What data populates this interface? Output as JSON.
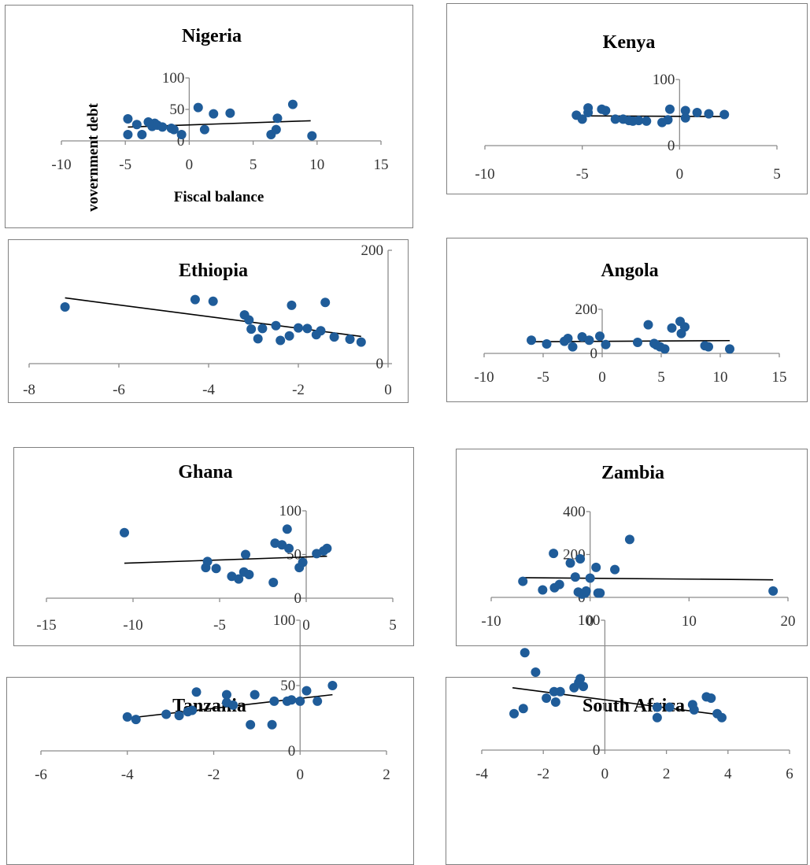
{
  "chart_data": [
    {
      "type": "scatter",
      "title": "Nigeria",
      "xlabel": "Fiscal balance",
      "ylabel": "vovernment debt",
      "xlim": [
        -10,
        15
      ],
      "ylim": [
        0,
        100
      ],
      "xticks": [
        -10,
        -5,
        0,
        5,
        10,
        15
      ],
      "yticks": [
        0,
        50,
        100
      ],
      "points": [
        [
          -4.8,
          35
        ],
        [
          -4.8,
          10
        ],
        [
          -4.1,
          26
        ],
        [
          -3.7,
          10
        ],
        [
          -3.2,
          30
        ],
        [
          -2.9,
          23
        ],
        [
          -2.7,
          28
        ],
        [
          -2.5,
          25
        ],
        [
          -2.1,
          22
        ],
        [
          -1.4,
          20
        ],
        [
          -1.2,
          18
        ],
        [
          -0.6,
          10
        ],
        [
          0.7,
          53
        ],
        [
          1.2,
          18
        ],
        [
          1.9,
          43
        ],
        [
          3.2,
          44
        ],
        [
          6.4,
          10
        ],
        [
          6.8,
          18
        ],
        [
          6.9,
          36
        ],
        [
          8.1,
          58
        ],
        [
          9.6,
          8
        ]
      ],
      "trendline": [
        [
          -4.8,
          22
        ],
        [
          9.5,
          32
        ]
      ]
    },
    {
      "type": "scatter",
      "title": "Kenya",
      "xlabel": "",
      "ylabel": "",
      "xlim": [
        -10,
        5
      ],
      "ylim": [
        0,
        100
      ],
      "xticks": [
        -10,
        -5,
        0,
        5
      ],
      "yticks": [
        0,
        100
      ],
      "points": [
        [
          -5.3,
          46
        ],
        [
          -5.0,
          40
        ],
        [
          -4.7,
          57
        ],
        [
          -4.7,
          50
        ],
        [
          -4.0,
          55
        ],
        [
          -3.8,
          53
        ],
        [
          -3.3,
          40
        ],
        [
          -2.9,
          40
        ],
        [
          -2.6,
          38
        ],
        [
          -2.4,
          37
        ],
        [
          -2.1,
          38
        ],
        [
          -1.7,
          37
        ],
        [
          -0.9,
          35
        ],
        [
          -0.6,
          39
        ],
        [
          -0.5,
          55
        ],
        [
          0.3,
          53
        ],
        [
          0.3,
          42
        ],
        [
          0.9,
          50
        ],
        [
          1.5,
          48
        ],
        [
          2.3,
          47
        ]
      ],
      "trendline": [
        [
          -5.4,
          45
        ],
        [
          2.3,
          44
        ]
      ]
    },
    {
      "type": "scatter",
      "title": "Ethiopia",
      "xlabel": "",
      "ylabel": "",
      "xlim": [
        -8,
        0
      ],
      "ylim": [
        0,
        200
      ],
      "xticks": [
        -8,
        -6,
        -4,
        -2,
        0
      ],
      "yticks": [
        0,
        200
      ],
      "points": [
        [
          -7.2,
          100
        ],
        [
          -4.3,
          113
        ],
        [
          -3.9,
          110
        ],
        [
          -3.2,
          86
        ],
        [
          -3.1,
          77
        ],
        [
          -3.05,
          61
        ],
        [
          -2.9,
          44
        ],
        [
          -2.8,
          62
        ],
        [
          -2.5,
          67
        ],
        [
          -2.4,
          41
        ],
        [
          -2.2,
          49
        ],
        [
          -2.15,
          103
        ],
        [
          -2.0,
          63
        ],
        [
          -1.8,
          62
        ],
        [
          -1.6,
          51
        ],
        [
          -1.5,
          58
        ],
        [
          -1.4,
          108
        ],
        [
          -1.2,
          47
        ],
        [
          -0.85,
          43
        ],
        [
          -0.6,
          38
        ]
      ],
      "trendline": [
        [
          -7.2,
          116
        ],
        [
          -0.6,
          48
        ]
      ]
    },
    {
      "type": "scatter",
      "title": "Angola",
      "xlabel": "",
      "ylabel": "",
      "xlim": [
        -10,
        15
      ],
      "ylim": [
        0,
        200
      ],
      "xticks": [
        -10,
        -5,
        0,
        5,
        10,
        15
      ],
      "yticks": [
        0,
        200
      ],
      "points": [
        [
          -6.0,
          60
        ],
        [
          -4.7,
          43
        ],
        [
          -3.2,
          55
        ],
        [
          -2.9,
          68
        ],
        [
          -2.5,
          30
        ],
        [
          -1.7,
          75
        ],
        [
          -1.1,
          60
        ],
        [
          -0.2,
          78
        ],
        [
          0.3,
          40
        ],
        [
          3.0,
          50
        ],
        [
          3.9,
          130
        ],
        [
          4.4,
          45
        ],
        [
          4.6,
          38
        ],
        [
          4.9,
          30
        ],
        [
          5.3,
          20
        ],
        [
          5.9,
          115
        ],
        [
          6.6,
          145
        ],
        [
          6.7,
          90
        ],
        [
          7.0,
          120
        ],
        [
          8.7,
          35
        ],
        [
          9.0,
          30
        ],
        [
          10.8,
          20
        ]
      ],
      "trendline": [
        [
          -6.0,
          53
        ],
        [
          10.8,
          58
        ]
      ]
    },
    {
      "type": "scatter",
      "title": "Ghana",
      "xlabel": "",
      "ylabel": "",
      "xlim": [
        -15,
        5
      ],
      "ylim": [
        0,
        100
      ],
      "xticks": [
        -15,
        -10,
        -5,
        0,
        5
      ],
      "yticks": [
        0,
        50,
        100
      ],
      "points": [
        [
          -10.5,
          75
        ],
        [
          -5.8,
          35
        ],
        [
          -5.7,
          42
        ],
        [
          -5.2,
          34
        ],
        [
          -4.3,
          25
        ],
        [
          -3.9,
          22
        ],
        [
          -3.6,
          30
        ],
        [
          -3.5,
          50
        ],
        [
          -3.3,
          27
        ],
        [
          -1.9,
          18
        ],
        [
          -1.8,
          63
        ],
        [
          -1.4,
          61
        ],
        [
          -1.1,
          79
        ],
        [
          -1.0,
          57
        ],
        [
          -0.4,
          35
        ],
        [
          -0.2,
          41
        ],
        [
          0.6,
          51
        ],
        [
          1.0,
          54
        ],
        [
          1.2,
          57
        ]
      ],
      "trendline": [
        [
          -10.5,
          40
        ],
        [
          1.2,
          48
        ]
      ]
    },
    {
      "type": "scatter",
      "title": "Zambia",
      "xlabel": "",
      "ylabel": "",
      "xlim": [
        -10,
        20
      ],
      "ylim": [
        0,
        400
      ],
      "xticks": [
        -10,
        0,
        10,
        20
      ],
      "yticks": [
        0,
        200,
        400
      ],
      "points": [
        [
          -6.8,
          75
        ],
        [
          -4.8,
          35
        ],
        [
          -3.7,
          205
        ],
        [
          -3.6,
          45
        ],
        [
          -3.1,
          60
        ],
        [
          -2.0,
          160
        ],
        [
          -1.5,
          95
        ],
        [
          -1.2,
          25
        ],
        [
          -1.0,
          180
        ],
        [
          -0.8,
          15
        ],
        [
          -0.5,
          20
        ],
        [
          -0.4,
          30
        ],
        [
          0.0,
          90
        ],
        [
          0.6,
          140
        ],
        [
          0.8,
          20
        ],
        [
          1.0,
          20
        ],
        [
          2.5,
          130
        ],
        [
          4.0,
          270
        ],
        [
          18.5,
          30
        ]
      ],
      "trendline": [
        [
          -6.8,
          92
        ],
        [
          18.5,
          82
        ]
      ]
    },
    {
      "type": "scatter",
      "title": "Tanzania",
      "xlabel": "",
      "ylabel": "",
      "xlim": [
        -6,
        2
      ],
      "ylim": [
        0,
        100
      ],
      "xticks": [
        -6,
        -4,
        -2,
        0,
        2
      ],
      "yticks": [
        0,
        50,
        100
      ],
      "points": [
        [
          -4.0,
          26
        ],
        [
          -3.8,
          24
        ],
        [
          -3.1,
          28
        ],
        [
          -2.8,
          27
        ],
        [
          -2.6,
          30
        ],
        [
          -2.5,
          31
        ],
        [
          -2.4,
          45
        ],
        [
          -1.7,
          43
        ],
        [
          -1.7,
          37
        ],
        [
          -1.55,
          35
        ],
        [
          -1.15,
          20
        ],
        [
          -1.05,
          43
        ],
        [
          -0.65,
          20
        ],
        [
          -0.6,
          38
        ],
        [
          -0.3,
          38
        ],
        [
          -0.2,
          39
        ],
        [
          0.0,
          38
        ],
        [
          0.15,
          46
        ],
        [
          0.4,
          38
        ],
        [
          0.75,
          50
        ]
      ],
      "trendline": [
        [
          -4.0,
          25
        ],
        [
          0.75,
          43
        ]
      ]
    },
    {
      "type": "scatter",
      "title": "South Africa",
      "xlabel": "",
      "ylabel": "",
      "xlim": [
        -4,
        6
      ],
      "ylim": [
        0,
        100
      ],
      "xticks": [
        -4,
        -2,
        0,
        2,
        4,
        6
      ],
      "yticks": [
        0,
        100
      ],
      "points": [
        [
          -2.95,
          28
        ],
        [
          -2.65,
          32
        ],
        [
          -2.6,
          75
        ],
        [
          -2.25,
          60
        ],
        [
          -1.9,
          40
        ],
        [
          -1.65,
          45
        ],
        [
          -1.6,
          37
        ],
        [
          -1.45,
          45
        ],
        [
          -1.0,
          48
        ],
        [
          -0.85,
          52
        ],
        [
          -0.8,
          55
        ],
        [
          -0.7,
          49
        ],
        [
          1.7,
          33
        ],
        [
          1.7,
          25
        ],
        [
          2.1,
          33
        ],
        [
          2.85,
          35
        ],
        [
          2.9,
          31
        ],
        [
          3.3,
          41
        ],
        [
          3.45,
          40
        ],
        [
          3.65,
          28
        ],
        [
          3.8,
          25
        ]
      ],
      "trendline": [
        [
          -3.0,
          48
        ],
        [
          3.8,
          27
        ]
      ]
    }
  ]
}
